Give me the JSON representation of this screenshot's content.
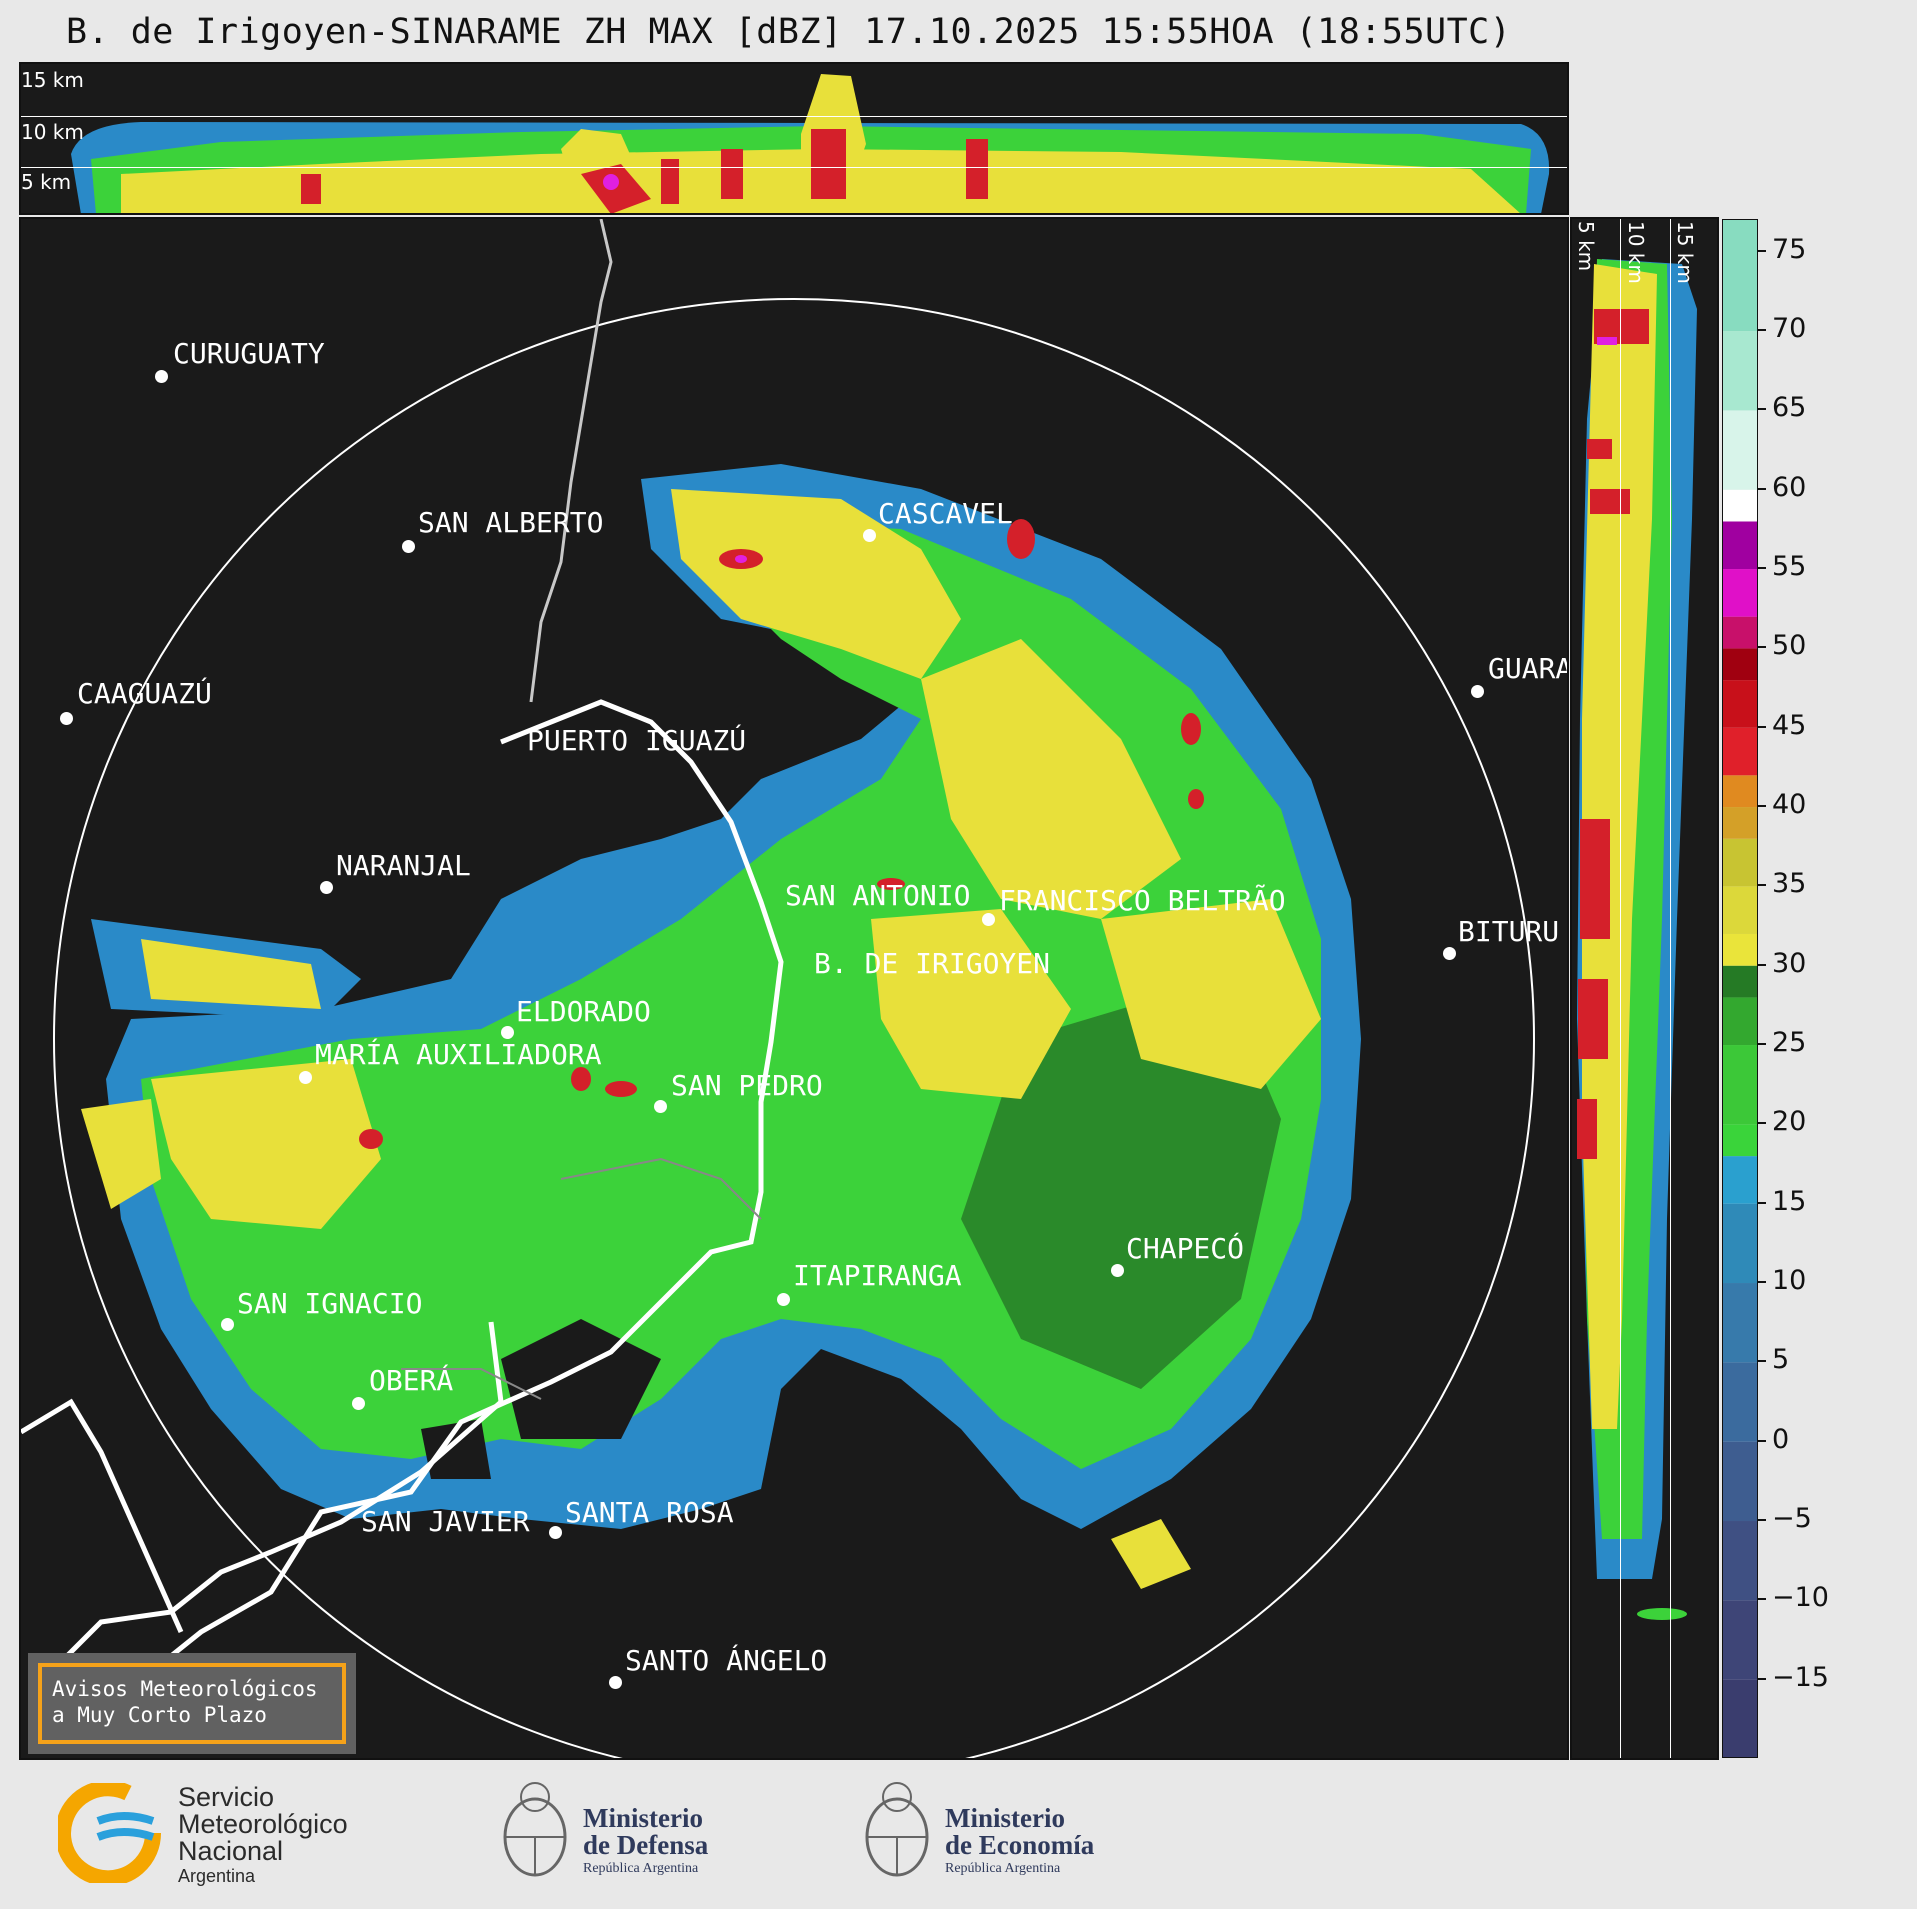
{
  "title": "B. de Irigoyen-SINARAME ZH MAX [dBZ] 17.10.2025 15:55HOA (18:55UTC)",
  "top_panel": {
    "altitudes": [
      "15 km",
      "10 km",
      "5 km"
    ]
  },
  "side_panel": {
    "altitudes": [
      "5 km",
      "10 km",
      "15 km"
    ]
  },
  "colorbar": {
    "unit": "dBZ",
    "ticks": [
      "75",
      "70",
      "65",
      "60",
      "55",
      "50",
      "45",
      "40",
      "35",
      "30",
      "25",
      "20",
      "15",
      "10",
      "5",
      "0",
      "−5",
      "−10",
      "−15"
    ],
    "range": [
      -20,
      77
    ]
  },
  "cities": [
    {
      "name": "CURUGUATY"
    },
    {
      "name": "SAN ALBERTO"
    },
    {
      "name": "CASCAVEL"
    },
    {
      "name": "CAAGUAZÚ"
    },
    {
      "name": "GUARA"
    },
    {
      "name": "PUERTO IGUAZÚ"
    },
    {
      "name": "NARANJAL"
    },
    {
      "name": "SAN ANTONIO"
    },
    {
      "name": "FRANCISCO BELTRÃO"
    },
    {
      "name": "BITURU"
    },
    {
      "name": "B. DE IRIGOYEN"
    },
    {
      "name": "ELDORADO"
    },
    {
      "name": "MARÍA AUXILIADORA"
    },
    {
      "name": "SAN PEDRO"
    },
    {
      "name": "ITAPIRANGA"
    },
    {
      "name": "CHAPECÓ"
    },
    {
      "name": "SAN IGNACIO"
    },
    {
      "name": "OBERÁ"
    },
    {
      "name": "SAN JAVIER"
    },
    {
      "name": "SANTA ROSA"
    },
    {
      "name": "SANTO ÁNGELO"
    }
  ],
  "notice": {
    "line1": "Avisos Meteorológicos",
    "line2": "a Muy Corto Plazo"
  },
  "logos": {
    "smn": {
      "line1": "Servicio",
      "line2": "Meteorológico",
      "line3": "Nacional",
      "line4": "Argentina"
    },
    "defensa": {
      "line1": "Ministerio",
      "line2": "de Defensa",
      "line3": "República Argentina"
    },
    "economia": {
      "line1": "Ministerio",
      "line2": "de Economía",
      "line3": "República Argentina"
    }
  },
  "colors": {
    "yellow": "#e8e03a",
    "green": "#3cd23a",
    "dark_green": "#2a8a2a",
    "blue": "#2a8ac8",
    "red": "#d4202a",
    "magenta": "#e020e0"
  }
}
